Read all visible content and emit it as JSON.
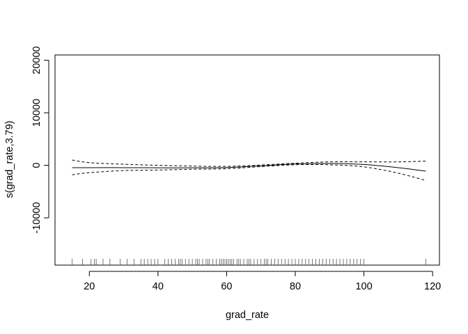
{
  "chart_data": {
    "type": "line",
    "title": "",
    "xlabel": "grad_rate",
    "ylabel": "s(grad_rate,3.79)",
    "xlim": [
      10,
      122
    ],
    "ylim": [
      -19000,
      21000
    ],
    "x_ticks": [
      20,
      40,
      60,
      80,
      100,
      120
    ],
    "x_tick_labels": [
      "20",
      "40",
      "60",
      "80",
      "100",
      "120"
    ],
    "y_ticks": [
      -10000,
      0,
      10000,
      20000
    ],
    "y_tick_labels": [
      "-10000",
      "0",
      "10000",
      "20000"
    ],
    "grid": false,
    "legend": "none",
    "series": [
      {
        "role": "fit",
        "style": "solid",
        "x": [
          15,
          20,
          30,
          40,
          50,
          60,
          70,
          80,
          90,
          100,
          110,
          118
        ],
        "y": [
          -450,
          -450,
          -450,
          -480,
          -480,
          -420,
          -100,
          250,
          350,
          150,
          -450,
          -1100
        ]
      },
      {
        "role": "upper",
        "style": "dashed",
        "x": [
          15,
          20,
          30,
          40,
          50,
          60,
          70,
          80,
          90,
          100,
          110,
          118
        ],
        "y": [
          1000,
          500,
          200,
          0,
          -150,
          -200,
          50,
          400,
          650,
          650,
          650,
          800
        ]
      },
      {
        "role": "lower",
        "style": "dashed",
        "x": [
          15,
          20,
          30,
          40,
          50,
          60,
          70,
          80,
          90,
          100,
          110,
          118
        ],
        "y": [
          -1800,
          -1400,
          -1000,
          -900,
          -750,
          -650,
          -250,
          100,
          100,
          -300,
          -1500,
          -2900
        ]
      }
    ],
    "rug": [
      15,
      18,
      20.5,
      21.5,
      22,
      24,
      26,
      29,
      31,
      33,
      35,
      36,
      37,
      38,
      39,
      40,
      42,
      43,
      44,
      45,
      46,
      46.5,
      47,
      48,
      49,
      50,
      51,
      51.5,
      52,
      53,
      54,
      54.5,
      55,
      56,
      57,
      58,
      58.5,
      59,
      59.5,
      60,
      60.5,
      61,
      61.5,
      62,
      63,
      63.5,
      64,
      65,
      66,
      66.5,
      67,
      68,
      69,
      70,
      71,
      71.5,
      72,
      73,
      74,
      75,
      76,
      77,
      78,
      79,
      80,
      81,
      82,
      83,
      84,
      85,
      86,
      87,
      88,
      89,
      90,
      91,
      92,
      93,
      94,
      95,
      96,
      97,
      98,
      99,
      100,
      118
    ]
  }
}
